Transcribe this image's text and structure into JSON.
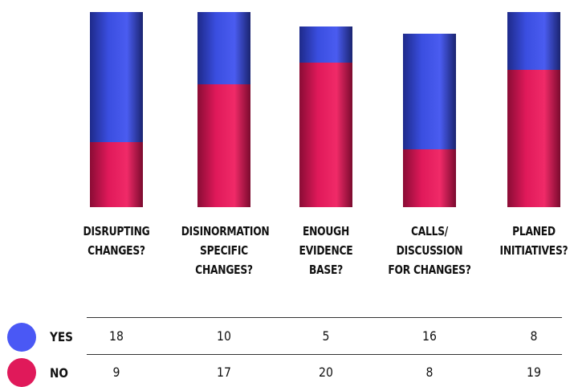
{
  "chart_data": {
    "type": "bar",
    "stacked": true,
    "categories": [
      "DISRUPTING\nCHANGES?",
      "DISINORMATION\nSPECIFIC\nCHANGES?",
      "ENOUGH\nEVIDENCE\nBASE?",
      "CALLS/\nDISCUSSION\nFOR CHANGES?",
      "PLANED\nINITIATIVES?"
    ],
    "series": [
      {
        "name": "YES",
        "color": "#3a4ee0",
        "values": [
          18,
          10,
          5,
          16,
          8
        ]
      },
      {
        "name": "NO",
        "color": "#e0195a",
        "values": [
          9,
          17,
          20,
          8,
          19
        ]
      }
    ],
    "title": "",
    "xlabel": "",
    "ylabel": "",
    "grid": false,
    "legend_placement": "bottom-left"
  }
}
